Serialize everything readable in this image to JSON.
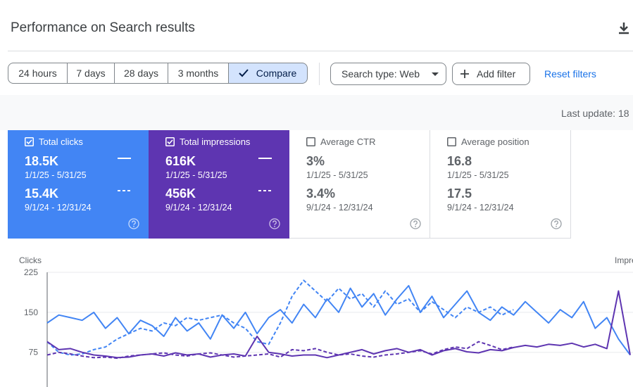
{
  "header": {
    "title": "Performance on Search results"
  },
  "toolbar": {
    "ranges": [
      "24 hours",
      "7 days",
      "28 days",
      "3 months"
    ],
    "compare": "Compare",
    "search_type": "Search type: Web",
    "add_filter": "Add filter",
    "reset_filters": "Reset filters"
  },
  "last_update": "Last update: 18",
  "metrics": [
    {
      "label": "Total clicks",
      "checked": true,
      "color": "#4285f4",
      "value_current": "18.5K",
      "range_current": "1/1/25 - 5/31/25",
      "value_previous": "15.4K",
      "range_previous": "9/1/24 - 12/31/24"
    },
    {
      "label": "Total impressions",
      "checked": true,
      "color": "#5e35b1",
      "value_current": "616K",
      "range_current": "1/1/25 - 5/31/25",
      "value_previous": "456K",
      "range_previous": "9/1/24 - 12/31/24"
    },
    {
      "label": "Average CTR",
      "checked": false,
      "value_current": "3%",
      "range_current": "1/1/25 - 5/31/25",
      "value_previous": "3.4%",
      "range_previous": "9/1/24 - 12/31/24"
    },
    {
      "label": "Average position",
      "checked": false,
      "value_current": "16.8",
      "range_current": "1/1/25 - 5/31/25",
      "value_previous": "17.5",
      "range_previous": "9/1/24 - 12/31/24"
    }
  ],
  "chart_data": {
    "type": "line",
    "y_label": "Clicks",
    "y2_label": "Impre",
    "ylim": [
      10,
      225
    ],
    "yticks": [
      75,
      150,
      225
    ],
    "grid": true,
    "series": [
      {
        "color": "#4285f4",
        "style": "solid",
        "values": [
          130,
          145,
          140,
          135,
          150,
          120,
          140,
          110,
          135,
          125,
          105,
          140,
          115,
          130,
          100,
          145,
          120,
          150,
          110,
          140,
          155,
          130,
          165,
          140,
          175,
          150,
          195,
          160,
          185,
          145,
          175,
          200,
          150,
          180,
          140,
          165,
          190,
          150,
          135,
          160,
          145,
          170,
          150,
          130,
          155,
          140,
          170,
          120,
          140,
          100,
          70
        ]
      },
      {
        "color": "#4285f4",
        "style": "dashed",
        "values": [
          95,
          75,
          70,
          72,
          80,
          85,
          100,
          110,
          120,
          115,
          130,
          125,
          140,
          135,
          140,
          145,
          130,
          120,
          95,
          90,
          130,
          180,
          210,
          190,
          170,
          195,
          175,
          185,
          160,
          190,
          165,
          175,
          150,
          170,
          155,
          140,
          160,
          150,
          160,
          145,
          155
        ]
      },
      {
        "color": "#5e35b1",
        "style": "solid",
        "values": [
          95,
          80,
          82,
          75,
          70,
          68,
          65,
          66,
          70,
          72,
          68,
          74,
          70,
          72,
          66,
          70,
          72,
          68,
          105,
          75,
          72,
          68,
          70,
          70,
          65,
          70,
          75,
          80,
          72,
          78,
          82,
          75,
          80,
          70,
          78,
          82,
          76,
          74,
          80,
          78,
          84,
          88,
          85,
          90,
          88,
          92,
          85,
          90,
          82,
          190,
          70
        ]
      },
      {
        "color": "#5e35b1",
        "style": "dashed",
        "values": [
          70,
          75,
          72,
          68,
          65,
          66,
          64,
          68,
          70,
          72,
          74,
          70,
          68,
          72,
          74,
          70,
          66,
          68,
          70,
          72,
          66,
          80,
          78,
          82,
          75,
          70,
          72,
          68,
          66,
          70,
          72,
          75,
          78,
          72,
          80,
          85,
          82,
          95,
          88,
          80,
          85
        ]
      }
    ]
  }
}
